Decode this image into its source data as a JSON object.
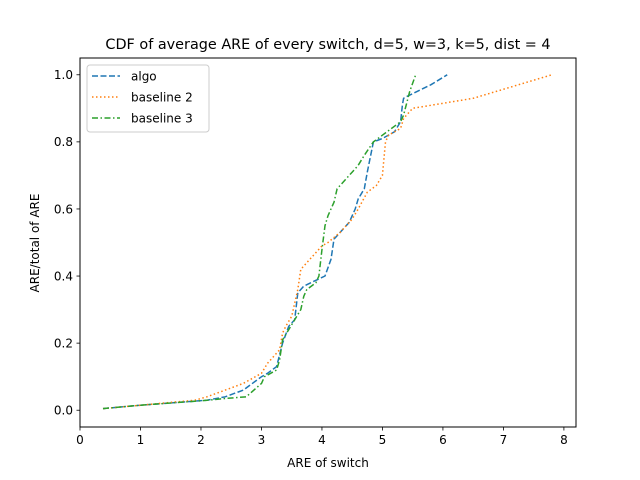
{
  "chart_data": {
    "type": "line",
    "title": "CDF of average ARE of every switch, d=5, w=3, k=5, dist = 4",
    "xlabel": "ARE of switch",
    "ylabel": "ARE/total of ARE",
    "xlim": [
      0,
      8.2
    ],
    "ylim": [
      -0.05,
      1.05
    ],
    "xticks": [
      0,
      1,
      2,
      3,
      4,
      5,
      6,
      7,
      8
    ],
    "yticks": [
      0.0,
      0.2,
      0.4,
      0.6,
      0.8,
      1.0
    ],
    "xtick_labels": [
      "0",
      "1",
      "2",
      "3",
      "4",
      "5",
      "6",
      "7",
      "8"
    ],
    "ytick_labels": [
      "0.0",
      "0.2",
      "0.4",
      "0.6",
      "0.8",
      "1.0"
    ],
    "grid": false,
    "legend_position": "top-left",
    "series": [
      {
        "name": "algo",
        "color": "#1f77b4",
        "style": "dashed",
        "x": [
          0.38,
          1.0,
          2.1,
          2.4,
          2.7,
          3.0,
          3.1,
          3.25,
          3.35,
          3.45,
          3.55,
          3.6,
          3.65,
          3.7,
          4.05,
          4.15,
          4.2,
          4.25,
          4.3,
          4.45,
          4.55,
          4.6,
          4.7,
          4.75,
          4.85,
          5.0,
          5.2,
          5.3,
          5.33,
          5.35,
          5.4,
          5.8,
          6.07
        ],
        "y": [
          0.005,
          0.015,
          0.03,
          0.04,
          0.06,
          0.1,
          0.11,
          0.13,
          0.2,
          0.25,
          0.27,
          0.35,
          0.36,
          0.37,
          0.4,
          0.45,
          0.51,
          0.52,
          0.53,
          0.56,
          0.6,
          0.63,
          0.66,
          0.71,
          0.8,
          0.81,
          0.83,
          0.86,
          0.91,
          0.93,
          0.935,
          0.97,
          1.0
        ]
      },
      {
        "name": "baseline 2",
        "color": "#ff7f0e",
        "style": "dotted",
        "x": [
          0.38,
          1.0,
          1.9,
          2.1,
          2.4,
          2.7,
          3.0,
          3.1,
          3.3,
          3.35,
          3.4,
          3.5,
          3.6,
          3.65,
          3.7,
          3.9,
          4.0,
          4.1,
          4.3,
          4.5,
          4.6,
          4.75,
          4.9,
          5.0,
          5.05,
          5.1,
          5.3,
          5.35,
          5.5,
          6.5,
          7.8
        ],
        "y": [
          0.005,
          0.015,
          0.03,
          0.04,
          0.06,
          0.08,
          0.11,
          0.14,
          0.18,
          0.23,
          0.25,
          0.28,
          0.36,
          0.42,
          0.43,
          0.47,
          0.49,
          0.5,
          0.53,
          0.57,
          0.6,
          0.65,
          0.67,
          0.7,
          0.8,
          0.82,
          0.84,
          0.87,
          0.9,
          0.93,
          1.0
        ]
      },
      {
        "name": "baseline 3",
        "color": "#2ca02c",
        "style": "dashdot",
        "x": [
          0.38,
          1.0,
          2.0,
          2.4,
          2.75,
          3.0,
          3.05,
          3.25,
          3.3,
          3.35,
          3.45,
          3.55,
          3.65,
          3.7,
          3.75,
          3.9,
          3.95,
          4.0,
          4.05,
          4.1,
          4.2,
          4.25,
          4.3,
          4.5,
          4.6,
          4.7,
          4.85,
          5.0,
          5.3,
          5.35,
          5.45,
          5.55
        ],
        "y": [
          0.005,
          0.015,
          0.028,
          0.035,
          0.04,
          0.08,
          0.1,
          0.12,
          0.15,
          0.21,
          0.24,
          0.27,
          0.3,
          0.34,
          0.36,
          0.38,
          0.4,
          0.48,
          0.55,
          0.58,
          0.62,
          0.66,
          0.67,
          0.71,
          0.73,
          0.76,
          0.8,
          0.82,
          0.86,
          0.88,
          0.95,
          1.0
        ]
      }
    ]
  }
}
